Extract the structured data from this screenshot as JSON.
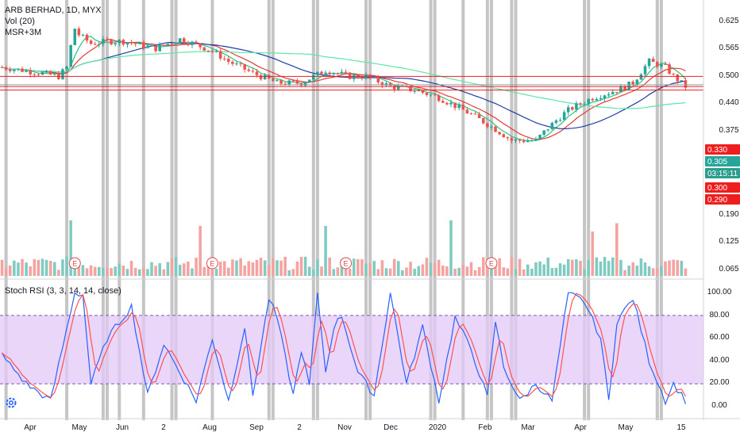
{
  "legend": {
    "symbol": "ARB BERHAD, 1D, MYX",
    "volume": "Vol (20)",
    "ma": "MSR+3M",
    "stoch": "Stoch RSI (3, 3, 14, 14, close)"
  },
  "colors": {
    "up": "#26a69a",
    "down": "#ef5350",
    "upVolume": "#7fcbc2",
    "downVolume": "#f4a3a1",
    "maRed": "#e53935",
    "maGreen": "#2ec27e",
    "maBlue": "#1e3fa8",
    "maMint": "#5ee6a8",
    "band": "#e1c8f7",
    "stochK": "#2962ff",
    "stochD": "#ff5252",
    "session": "#b2b2b2"
  },
  "price_axis": {
    "ticks": [
      "0.625",
      "0.565",
      "0.500",
      "0.440",
      "0.375",
      "0.190",
      "0.125",
      "0.065"
    ],
    "tags": [
      {
        "label": "0.330",
        "value": 0.33,
        "color": "#ef1e1e"
      },
      {
        "label": "0.305",
        "value": 0.305,
        "color": "#26a69a"
      },
      {
        "label": "03:15:11",
        "value": 0.305,
        "color": "#2a9d8f",
        "under": true
      },
      {
        "label": "0.300",
        "value": 0.3,
        "color": "#ef1e1e"
      },
      {
        "label": "0.290",
        "value": 0.29,
        "color": "#ef1e1e"
      }
    ]
  },
  "stoch_axis": {
    "ticks": [
      "100.00",
      "80.00",
      "60.00",
      "40.00",
      "20.00",
      "0.00"
    ],
    "upper": 80,
    "lower": 20
  },
  "time_axis": {
    "labels": [
      "Apr",
      "May",
      "Jun",
      "2",
      "Aug",
      "Sep",
      "2",
      "Nov",
      "Dec",
      "2020",
      "Feb",
      "Mar",
      "Apr",
      "May",
      "15"
    ]
  },
  "horizontal_lines": [
    0.33,
    0.305,
    0.3,
    0.29
  ],
  "earnings_labels": [
    "E",
    "E",
    "E",
    "E"
  ],
  "chart_data": {
    "type": "candlestick",
    "candle_count": 170,
    "price_min": 0.05,
    "price_max": 0.66,
    "price_path_days": [
      0,
      10,
      14,
      16,
      18,
      19,
      22,
      26,
      30,
      38,
      44,
      52,
      56,
      62,
      68,
      74,
      80,
      86,
      90,
      96,
      102,
      108,
      116,
      120,
      126,
      132,
      140,
      146,
      152,
      156,
      160,
      164,
      166,
      169
    ],
    "price_path": [
      0.36,
      0.34,
      0.33,
      0.36,
      0.52,
      0.49,
      0.45,
      0.46,
      0.46,
      0.43,
      0.47,
      0.42,
      0.38,
      0.34,
      0.31,
      0.31,
      0.35,
      0.33,
      0.33,
      0.3,
      0.29,
      0.27,
      0.23,
      0.21,
      0.18,
      0.18,
      0.24,
      0.27,
      0.29,
      0.31,
      0.38,
      0.36,
      0.33,
      0.3
    ],
    "stoch_k_days": [
      0,
      6,
      12,
      18,
      20,
      22,
      26,
      32,
      36,
      40,
      44,
      48,
      52,
      56,
      60,
      62,
      66,
      68,
      72,
      74,
      76,
      78,
      80,
      82,
      84,
      88,
      92,
      96,
      100,
      104,
      108,
      112,
      116,
      120,
      122,
      124,
      128,
      132,
      136,
      140,
      144,
      148,
      150,
      152,
      156,
      160,
      164,
      166,
      169
    ],
    "stoch_k": [
      45,
      20,
      5,
      100,
      98,
      20,
      60,
      88,
      10,
      55,
      30,
      5,
      60,
      5,
      70,
      10,
      95,
      78,
      10,
      50,
      18,
      100,
      30,
      70,
      80,
      30,
      10,
      100,
      20,
      70,
      5,
      78,
      50,
      8,
      75,
      35,
      5,
      20,
      5,
      100,
      92,
      60,
      5,
      75,
      95,
      40,
      5,
      20,
      5
    ],
    "volume_spikes": [
      {
        "day": 17,
        "value": 1.0
      },
      {
        "day": 49,
        "value": 0.9
      },
      {
        "day": 80,
        "value": 0.9
      },
      {
        "day": 111,
        "value": 1.0
      },
      {
        "day": 146,
        "value": 0.8
      },
      {
        "day": 152,
        "value": 0.95
      }
    ]
  }
}
